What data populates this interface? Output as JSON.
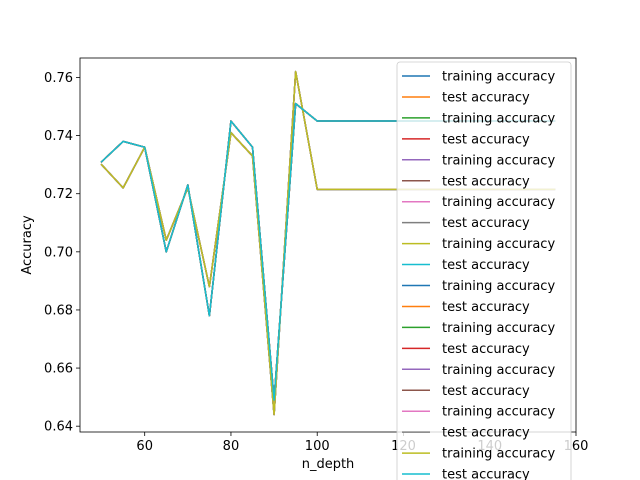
{
  "chart_data": {
    "type": "line",
    "title": "",
    "xlabel": "n_depth",
    "ylabel": "Accuracy",
    "xlim": [
      45,
      160
    ],
    "ylim": [
      0.638,
      0.7667
    ],
    "xticks": [
      60,
      80,
      100,
      120,
      140,
      160
    ],
    "yticks": [
      0.64,
      0.66,
      0.68,
      0.7,
      0.72,
      0.74,
      0.76
    ],
    "ytick_labels": [
      "0.64",
      "0.66",
      "0.68",
      "0.70",
      "0.72",
      "0.74",
      "0.76"
    ],
    "grid": false,
    "legend_position": "right",
    "x": [
      50,
      55,
      60,
      65,
      70,
      75,
      80,
      85,
      90,
      95,
      100,
      105,
      110,
      115,
      120,
      125,
      130,
      135,
      140,
      145,
      150,
      155
    ],
    "series": [
      {
        "name": "training accuracy",
        "color": "#1f77b4",
        "values": [
          0.73,
          0.722,
          0.736,
          0.704,
          0.722,
          0.688,
          0.741,
          0.733,
          0.644,
          0.762,
          0.7215,
          0.7215,
          0.7215,
          0.7215,
          0.7215,
          0.7215,
          0.7215,
          0.7215,
          0.7215,
          0.7215,
          0.7215,
          0.7215
        ]
      },
      {
        "name": "test accuracy",
        "color": "#ff7f0e",
        "values": [
          0.731,
          0.738,
          0.736,
          0.7,
          0.723,
          0.678,
          0.745,
          0.736,
          0.649,
          0.751,
          0.745,
          0.745,
          0.745,
          0.745,
          0.745,
          0.745,
          0.745,
          0.745,
          0.745,
          0.745,
          0.745,
          0.745
        ]
      },
      {
        "name": "training accuracy",
        "color": "#2ca02c",
        "values": [
          0.73,
          0.722,
          0.736,
          0.704,
          0.722,
          0.688,
          0.741,
          0.733,
          0.644,
          0.762,
          0.7215,
          0.7215,
          0.7215,
          0.7215,
          0.7215,
          0.7215,
          0.7215,
          0.7215,
          0.7215,
          0.7215,
          0.7215,
          0.7215
        ]
      },
      {
        "name": "test accuracy",
        "color": "#d62728",
        "values": [
          0.731,
          0.738,
          0.736,
          0.7,
          0.723,
          0.678,
          0.745,
          0.736,
          0.649,
          0.751,
          0.745,
          0.745,
          0.745,
          0.745,
          0.745,
          0.745,
          0.745,
          0.745,
          0.745,
          0.745,
          0.745,
          0.745
        ]
      },
      {
        "name": "training accuracy",
        "color": "#9467bd",
        "values": [
          0.73,
          0.722,
          0.736,
          0.704,
          0.722,
          0.688,
          0.741,
          0.733,
          0.644,
          0.762,
          0.7215,
          0.7215,
          0.7215,
          0.7215,
          0.7215,
          0.7215,
          0.7215,
          0.7215,
          0.7215,
          0.7215,
          0.7215,
          0.7215
        ]
      },
      {
        "name": "test accuracy",
        "color": "#8c564b",
        "values": [
          0.731,
          0.738,
          0.736,
          0.7,
          0.723,
          0.678,
          0.745,
          0.736,
          0.649,
          0.751,
          0.745,
          0.745,
          0.745,
          0.745,
          0.745,
          0.745,
          0.745,
          0.745,
          0.745,
          0.745,
          0.745,
          0.745
        ]
      },
      {
        "name": "training accuracy",
        "color": "#e377c2",
        "values": [
          0.73,
          0.722,
          0.736,
          0.704,
          0.722,
          0.688,
          0.741,
          0.733,
          0.644,
          0.762,
          0.7215,
          0.7215,
          0.7215,
          0.7215,
          0.7215,
          0.7215,
          0.7215,
          0.7215,
          0.7215,
          0.7215,
          0.7215,
          0.7215
        ]
      },
      {
        "name": "test accuracy",
        "color": "#7f7f7f",
        "values": [
          0.731,
          0.738,
          0.736,
          0.7,
          0.723,
          0.678,
          0.745,
          0.736,
          0.649,
          0.751,
          0.745,
          0.745,
          0.745,
          0.745,
          0.745,
          0.745,
          0.745,
          0.745,
          0.745,
          0.745,
          0.745,
          0.745
        ]
      },
      {
        "name": "training accuracy",
        "color": "#bcbd22",
        "values": [
          0.73,
          0.722,
          0.736,
          0.704,
          0.722,
          0.688,
          0.741,
          0.733,
          0.644,
          0.762,
          0.7215,
          0.7215,
          0.7215,
          0.7215,
          0.7215,
          0.7215,
          0.7215,
          0.7215,
          0.7215,
          0.7215,
          0.7215,
          0.7215
        ]
      },
      {
        "name": "test accuracy",
        "color": "#17becf",
        "values": [
          0.731,
          0.738,
          0.736,
          0.7,
          0.723,
          0.678,
          0.745,
          0.736,
          0.649,
          0.751,
          0.745,
          0.745,
          0.745,
          0.745,
          0.745,
          0.745,
          0.745,
          0.745,
          0.745,
          0.745,
          0.745,
          0.745
        ]
      },
      {
        "name": "training accuracy",
        "color": "#1f77b4",
        "values": [
          0.73,
          0.722,
          0.736,
          0.704,
          0.722,
          0.688,
          0.741,
          0.733,
          0.644,
          0.762,
          0.7215,
          0.7215,
          0.7215,
          0.7215,
          0.7215,
          0.7215,
          0.7215,
          0.7215,
          0.7215,
          0.7215,
          0.7215,
          0.7215
        ]
      },
      {
        "name": "test accuracy",
        "color": "#ff7f0e",
        "values": [
          0.731,
          0.738,
          0.736,
          0.7,
          0.723,
          0.678,
          0.745,
          0.736,
          0.649,
          0.751,
          0.745,
          0.745,
          0.745,
          0.745,
          0.745,
          0.745,
          0.745,
          0.745,
          0.745,
          0.745,
          0.745,
          0.745
        ]
      },
      {
        "name": "training accuracy",
        "color": "#2ca02c",
        "values": [
          0.73,
          0.722,
          0.736,
          0.704,
          0.722,
          0.688,
          0.741,
          0.733,
          0.644,
          0.762,
          0.7215,
          0.7215,
          0.7215,
          0.7215,
          0.7215,
          0.7215,
          0.7215,
          0.7215,
          0.7215,
          0.7215,
          0.7215,
          0.7215
        ]
      },
      {
        "name": "test accuracy",
        "color": "#d62728",
        "values": [
          0.731,
          0.738,
          0.736,
          0.7,
          0.723,
          0.678,
          0.745,
          0.736,
          0.649,
          0.751,
          0.745,
          0.745,
          0.745,
          0.745,
          0.745,
          0.745,
          0.745,
          0.745,
          0.745,
          0.745,
          0.745,
          0.745
        ]
      },
      {
        "name": "training accuracy",
        "color": "#9467bd",
        "values": [
          0.73,
          0.722,
          0.736,
          0.704,
          0.722,
          0.688,
          0.741,
          0.733,
          0.644,
          0.762,
          0.7215,
          0.7215,
          0.7215,
          0.7215,
          0.7215,
          0.7215,
          0.7215,
          0.7215,
          0.7215,
          0.7215,
          0.7215,
          0.7215
        ]
      },
      {
        "name": "test accuracy",
        "color": "#8c564b",
        "values": [
          0.731,
          0.738,
          0.736,
          0.7,
          0.723,
          0.678,
          0.745,
          0.736,
          0.649,
          0.751,
          0.745,
          0.745,
          0.745,
          0.745,
          0.745,
          0.745,
          0.745,
          0.745,
          0.745,
          0.745,
          0.745,
          0.745
        ]
      },
      {
        "name": "training accuracy",
        "color": "#e377c2",
        "values": [
          0.73,
          0.722,
          0.736,
          0.704,
          0.722,
          0.688,
          0.741,
          0.733,
          0.644,
          0.762,
          0.7215,
          0.7215,
          0.7215,
          0.7215,
          0.7215,
          0.7215,
          0.7215,
          0.7215,
          0.7215,
          0.7215,
          0.7215,
          0.7215
        ]
      },
      {
        "name": "test accuracy",
        "color": "#7f7f7f",
        "values": [
          0.731,
          0.738,
          0.736,
          0.7,
          0.723,
          0.678,
          0.745,
          0.736,
          0.649,
          0.751,
          0.745,
          0.745,
          0.745,
          0.745,
          0.745,
          0.745,
          0.745,
          0.745,
          0.745,
          0.745,
          0.745,
          0.745
        ]
      },
      {
        "name": "training accuracy",
        "color": "#bcbd22",
        "values": [
          0.73,
          0.722,
          0.736,
          0.704,
          0.722,
          0.688,
          0.741,
          0.733,
          0.644,
          0.762,
          0.7215,
          0.7215,
          0.7215,
          0.7215,
          0.7215,
          0.7215,
          0.7215,
          0.7215,
          0.7215,
          0.7215,
          0.7215,
          0.7215
        ]
      },
      {
        "name": "test accuracy",
        "color": "#17becf",
        "values": [
          0.731,
          0.738,
          0.736,
          0.7,
          0.723,
          0.678,
          0.745,
          0.736,
          0.649,
          0.751,
          0.745,
          0.745,
          0.745,
          0.745,
          0.745,
          0.745,
          0.745,
          0.745,
          0.745,
          0.745,
          0.745,
          0.745
        ]
      }
    ]
  }
}
